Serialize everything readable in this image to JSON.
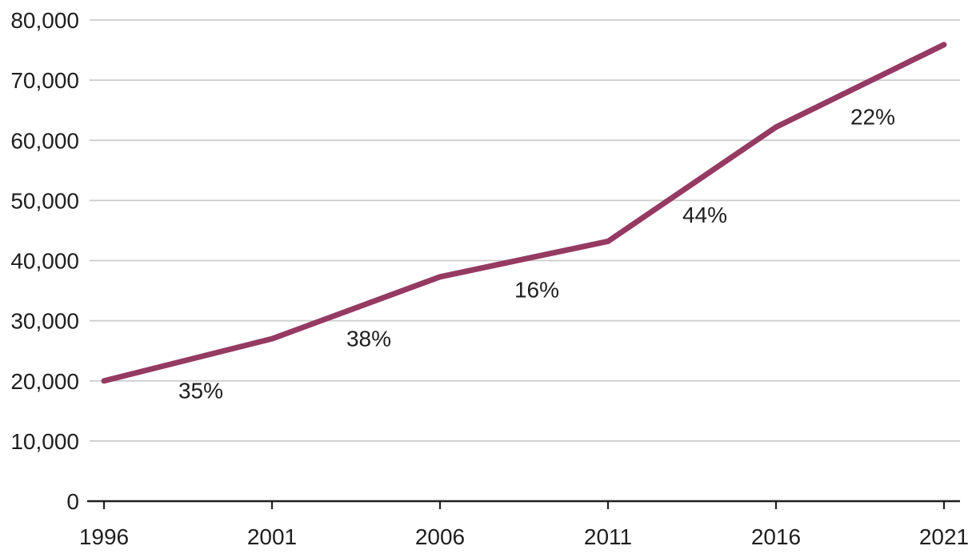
{
  "chart_data": {
    "type": "line",
    "x": [
      1996,
      2001,
      2006,
      2011,
      2016,
      2021
    ],
    "x_tick_labels": [
      "1996",
      "2001",
      "2006",
      "2011",
      "2016",
      "2021"
    ],
    "values": [
      20000,
      27000,
      37300,
      43200,
      62200,
      75900
    ],
    "growth_labels": [
      "35%",
      "38%",
      "16%",
      "44%",
      "22%"
    ],
    "title": "",
    "xlabel": "",
    "ylabel": "",
    "ylim": [
      0,
      80000
    ],
    "ytick_step": 10000,
    "y_tick_labels": [
      "0",
      "10,000",
      "20,000",
      "30,000",
      "40,000",
      "50,000",
      "60,000",
      "70,000",
      "80,000"
    ],
    "legend": "none",
    "grid": "horizontal",
    "colors": {
      "line": "#953a62",
      "gridline": "#cbcbcb",
      "axis": "#1f1f1f",
      "text": "#1f1f1f",
      "background": "#ffffff"
    }
  }
}
